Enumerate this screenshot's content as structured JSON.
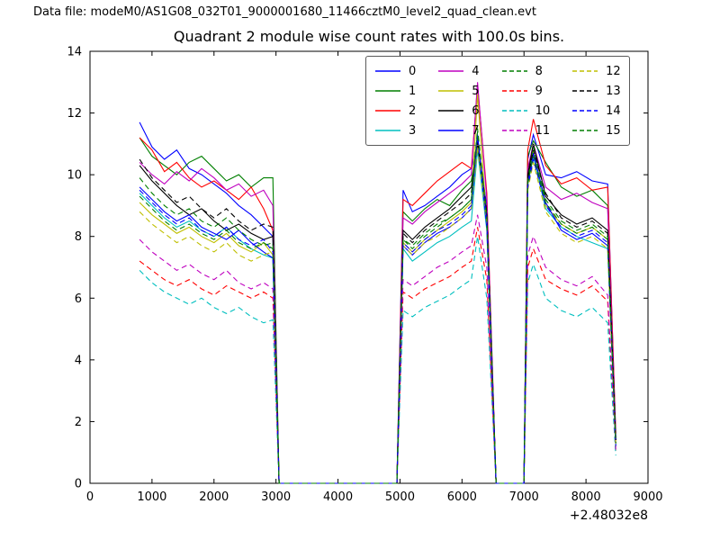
{
  "header": {
    "data_file_label": "Data file: modeM0/AS1G08_032T01_9000001680_11466cztM0_level2_quad_clean.evt"
  },
  "chart_data": {
    "type": "line",
    "title": "Quadrant 2 module wise count rates with 100.0s bins.",
    "xlabel": "",
    "ylabel": "",
    "xlim": [
      0,
      9000
    ],
    "ylim": [
      0,
      14
    ],
    "x_ticks": [
      0,
      1000,
      2000,
      3000,
      4000,
      5000,
      6000,
      7000,
      8000,
      9000
    ],
    "y_ticks": [
      0,
      2,
      4,
      6,
      8,
      10,
      12,
      14
    ],
    "x_offset_label": "+2.48032e8",
    "grid": false,
    "legend_position": "upper center",
    "x": [
      800,
      1000,
      1200,
      1400,
      1600,
      1800,
      2000,
      2200,
      2400,
      2600,
      2800,
      2950,
      3050,
      4950,
      5050,
      5200,
      5400,
      5600,
      5800,
      6000,
      6150,
      6250,
      6400,
      6550,
      7000,
      7060,
      7150,
      7350,
      7600,
      7850,
      8100,
      8350,
      8480
    ],
    "series": [
      {
        "name": "0",
        "color": "#0000ff",
        "dash": false,
        "values": [
          11.7,
          10.9,
          10.5,
          10.8,
          10.2,
          10.0,
          9.7,
          9.4,
          9.0,
          8.7,
          8.3,
          8.0,
          0,
          0,
          9.5,
          8.8,
          9.0,
          9.3,
          9.6,
          10.0,
          10.2,
          11.0,
          9.0,
          0,
          0,
          10.5,
          11.3,
          10.0,
          9.9,
          10.1,
          9.8,
          9.7,
          1.5
        ]
      },
      {
        "name": "1",
        "color": "#007f00",
        "dash": false,
        "values": [
          11.2,
          10.6,
          10.3,
          10.0,
          10.4,
          10.6,
          10.2,
          9.8,
          10.0,
          9.6,
          9.9,
          9.9,
          0,
          0,
          8.8,
          8.5,
          8.9,
          9.2,
          9.0,
          9.5,
          9.8,
          11.0,
          8.8,
          0,
          0,
          10.6,
          11.1,
          10.4,
          9.6,
          9.3,
          9.5,
          9.0,
          1.4
        ]
      },
      {
        "name": "2",
        "color": "#ff0000",
        "dash": false,
        "values": [
          11.2,
          10.8,
          10.1,
          10.4,
          9.9,
          9.6,
          9.8,
          9.5,
          9.2,
          9.6,
          8.9,
          8.2,
          0,
          0,
          9.2,
          9.0,
          9.4,
          9.8,
          10.1,
          10.4,
          10.2,
          12.9,
          9.4,
          0,
          0,
          10.8,
          11.8,
          10.3,
          9.7,
          9.9,
          9.5,
          9.6,
          1.6
        ]
      },
      {
        "name": "3",
        "color": "#00bfbf",
        "dash": false,
        "values": [
          9.4,
          9.0,
          8.6,
          8.3,
          8.5,
          8.2,
          8.0,
          8.3,
          7.9,
          7.6,
          7.4,
          7.3,
          0,
          0,
          7.6,
          7.2,
          7.5,
          7.8,
          8.0,
          8.3,
          8.5,
          10.8,
          8.2,
          0,
          0,
          9.8,
          10.6,
          8.9,
          8.3,
          8.0,
          7.8,
          7.6,
          1.2
        ]
      },
      {
        "name": "4",
        "color": "#bf00bf",
        "dash": false,
        "values": [
          10.4,
          10.0,
          9.7,
          10.1,
          9.8,
          10.2,
          9.9,
          9.5,
          9.7,
          9.3,
          9.5,
          9.0,
          0,
          0,
          8.6,
          8.4,
          8.8,
          9.1,
          9.4,
          9.7,
          10.0,
          13.0,
          9.2,
          0,
          0,
          10.2,
          11.0,
          9.6,
          9.2,
          9.4,
          9.1,
          8.9,
          1.5
        ]
      },
      {
        "name": "5",
        "color": "#bfbf00",
        "dash": false,
        "values": [
          9.1,
          8.7,
          8.4,
          8.1,
          8.3,
          8.0,
          7.8,
          8.1,
          7.7,
          7.5,
          7.8,
          7.4,
          0,
          0,
          7.8,
          7.5,
          7.9,
          8.2,
          8.5,
          8.8,
          9.1,
          12.6,
          8.5,
          0,
          0,
          9.9,
          10.8,
          9.0,
          8.4,
          8.1,
          8.3,
          7.9,
          1.3
        ]
      },
      {
        "name": "6",
        "color": "#000000",
        "dash": false,
        "values": [
          10.3,
          9.8,
          9.4,
          9.0,
          8.7,
          8.9,
          8.5,
          8.2,
          8.4,
          8.1,
          7.9,
          8.0,
          0,
          0,
          8.2,
          7.9,
          8.3,
          8.6,
          8.9,
          9.3,
          9.6,
          11.0,
          8.7,
          0,
          0,
          10.0,
          11.0,
          9.3,
          8.7,
          8.4,
          8.6,
          8.2,
          1.4
        ]
      },
      {
        "name": "7",
        "color": "#0000ff",
        "dash": false,
        "values": [
          9.6,
          9.2,
          8.8,
          8.5,
          8.7,
          8.3,
          8.1,
          7.9,
          8.2,
          7.8,
          7.5,
          7.3,
          0,
          0,
          7.7,
          7.4,
          7.8,
          8.1,
          8.3,
          8.6,
          8.9,
          11.2,
          8.3,
          0,
          0,
          9.7,
          10.7,
          9.1,
          8.2,
          7.9,
          8.1,
          7.7,
          1.2
        ]
      },
      {
        "name": "8",
        "color": "#007f00",
        "dash": true,
        "values": [
          9.9,
          9.4,
          9.0,
          8.7,
          8.9,
          8.5,
          8.3,
          8.6,
          8.2,
          7.9,
          7.7,
          7.8,
          0,
          0,
          7.9,
          7.6,
          8.0,
          8.3,
          8.6,
          8.9,
          9.2,
          11.4,
          8.6,
          0,
          0,
          9.8,
          10.9,
          9.2,
          8.5,
          8.2,
          8.4,
          8.0,
          1.3
        ]
      },
      {
        "name": "9",
        "color": "#ff0000",
        "dash": true,
        "values": [
          7.2,
          6.9,
          6.6,
          6.4,
          6.6,
          6.3,
          6.1,
          6.4,
          6.2,
          6.0,
          6.2,
          6.0,
          0,
          0,
          6.2,
          6.0,
          6.3,
          6.5,
          6.7,
          7.0,
          7.2,
          8.3,
          6.6,
          0,
          0,
          7.0,
          7.6,
          6.6,
          6.3,
          6.1,
          6.4,
          5.9,
          1.0
        ]
      },
      {
        "name": "10",
        "color": "#00bfbf",
        "dash": true,
        "values": [
          6.9,
          6.5,
          6.2,
          6.0,
          5.8,
          6.0,
          5.7,
          5.5,
          5.7,
          5.4,
          5.2,
          5.3,
          0,
          0,
          5.6,
          5.4,
          5.7,
          5.9,
          6.1,
          6.4,
          6.6,
          8.0,
          6.0,
          0,
          0,
          6.5,
          7.1,
          6.0,
          5.6,
          5.4,
          5.7,
          5.2,
          0.9
        ]
      },
      {
        "name": "11",
        "color": "#bf00bf",
        "dash": true,
        "values": [
          7.9,
          7.5,
          7.2,
          6.9,
          7.1,
          6.8,
          6.6,
          6.9,
          6.5,
          6.3,
          6.5,
          6.3,
          0,
          0,
          6.6,
          6.4,
          6.7,
          7.0,
          7.2,
          7.5,
          7.7,
          8.7,
          7.0,
          0,
          0,
          7.4,
          8.0,
          7.0,
          6.6,
          6.4,
          6.7,
          6.1,
          1.1
        ]
      },
      {
        "name": "12",
        "color": "#bfbf00",
        "dash": true,
        "values": [
          8.8,
          8.4,
          8.1,
          7.8,
          8.0,
          7.7,
          7.5,
          7.8,
          7.4,
          7.2,
          7.4,
          7.5,
          0,
          0,
          7.7,
          7.4,
          7.8,
          8.0,
          8.3,
          8.6,
          8.9,
          10.9,
          8.4,
          0,
          0,
          9.5,
          10.4,
          8.8,
          8.1,
          7.8,
          8.0,
          7.6,
          1.2
        ]
      },
      {
        "name": "13",
        "color": "#000000",
        "dash": true,
        "values": [
          10.5,
          9.9,
          9.5,
          9.1,
          9.3,
          8.9,
          8.6,
          8.9,
          8.5,
          8.2,
          8.4,
          8.3,
          0,
          0,
          8.1,
          7.8,
          8.2,
          8.5,
          8.8,
          9.1,
          9.4,
          11.1,
          8.8,
          0,
          0,
          9.9,
          10.8,
          9.4,
          8.6,
          8.3,
          8.5,
          8.1,
          1.4
        ]
      },
      {
        "name": "14",
        "color": "#0000ff",
        "dash": true,
        "values": [
          9.5,
          9.1,
          8.7,
          8.4,
          8.6,
          8.2,
          8.0,
          8.3,
          7.9,
          7.7,
          7.9,
          7.5,
          0,
          0,
          7.8,
          7.5,
          7.9,
          8.2,
          8.4,
          8.7,
          9.0,
          11.3,
          8.5,
          0,
          0,
          9.6,
          10.5,
          9.0,
          8.3,
          8.0,
          8.2,
          7.8,
          1.3
        ]
      },
      {
        "name": "15",
        "color": "#007f00",
        "dash": true,
        "values": [
          9.3,
          8.9,
          8.5,
          8.2,
          8.4,
          8.1,
          7.9,
          8.2,
          7.8,
          7.6,
          7.8,
          7.6,
          0,
          0,
          7.9,
          7.7,
          8.1,
          8.4,
          8.6,
          8.9,
          9.2,
          11.5,
          8.6,
          0,
          0,
          9.7,
          10.6,
          9.1,
          8.4,
          8.1,
          8.3,
          7.9,
          1.3
        ]
      }
    ]
  }
}
